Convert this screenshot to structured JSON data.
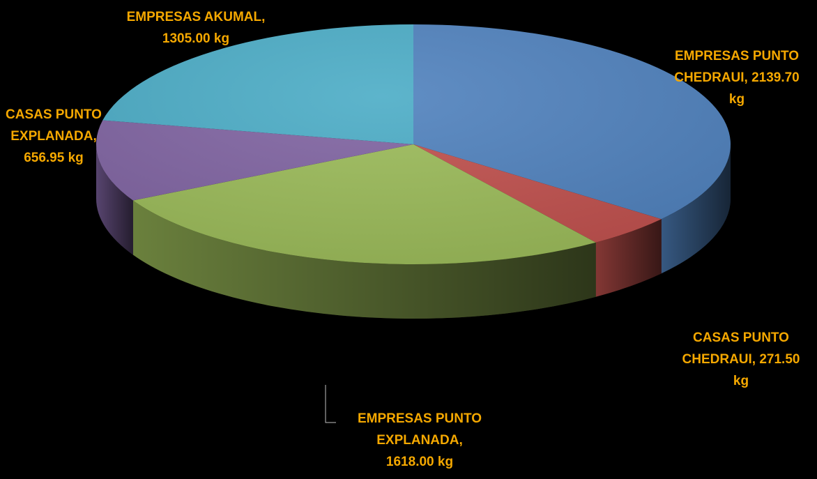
{
  "chart_data": {
    "type": "pie",
    "style": "3d-pie",
    "unit": "kg",
    "slices": [
      {
        "label": "EMPRESAS PUNTO CHEDRAUI",
        "value": 2139.7,
        "color": "#4f81bd",
        "label_lines": [
          "EMPRESAS PUNTO",
          "CHEDRAUI, 2139.70",
          "kg"
        ]
      },
      {
        "label": "CASAS PUNTO CHEDRAUI",
        "value": 271.5,
        "color": "#c0504d",
        "label_lines": [
          "CASAS PUNTO",
          "CHEDRAUI, 271.50",
          "kg"
        ]
      },
      {
        "label": "EMPRESAS PUNTO EXPLANADA",
        "value": 1618.0,
        "color": "#9bbb59",
        "label_lines": [
          "EMPRESAS PUNTO",
          "EXPLANADA,",
          "1618.00 kg"
        ]
      },
      {
        "label": "CASAS PUNTO EXPLANADA",
        "value": 656.95,
        "color": "#8064a2",
        "label_lines": [
          "CASAS PUNTO",
          "EXPLANADA,",
          "656.95 kg"
        ]
      },
      {
        "label": "EMPRESAS AKUMAL",
        "value": 1305.0,
        "color": "#4bacc6",
        "label_lines": [
          "EMPRESAS AKUMAL,",
          "1305.00 kg"
        ]
      }
    ],
    "label_color": "#f5a800",
    "background": "#000000",
    "legend": "none"
  }
}
